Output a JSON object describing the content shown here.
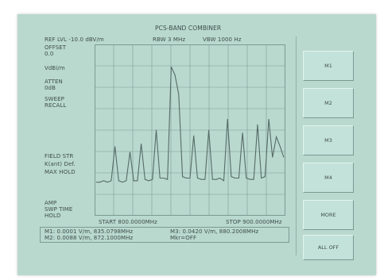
{
  "header": {
    "title": "PCS-BAND COMBINER",
    "ref_level": "REF LVL -10.0 dBV/m",
    "rbw": "RBW 3 MHz",
    "vbw": "VBW 1000 Hz"
  },
  "left_labels": {
    "offset_label": "OFFSET",
    "offset_value": "0.0",
    "units": "VdBi/m",
    "atten_label": "ATTEN",
    "atten_value": "0dB",
    "sweep_label": "SWEEP",
    "sweep_value": "RECALL",
    "field_str": "FIELD STR",
    "k_ant": "K(ant) Def.",
    "max_hold": "MAX HOLD",
    "amp": "AMP",
    "swp_time": "SWP TIME",
    "hold": "HOLD"
  },
  "axis": {
    "start": "START 800.0000MHz",
    "stop": "STOP 900.0000MHz"
  },
  "markers": {
    "m1": "M1: 0.0001 V/m, 835.0798MHz",
    "m2": "M2: 0.0088 V/m, 872.1000MHz",
    "m3": "M3: 0.0420 V/m, 880.2008MHz",
    "mkr_state": "Mkr=OFF"
  },
  "softkeys": [
    "M1",
    "M2",
    "M3",
    "M4",
    "MORE",
    "ALL OFF"
  ],
  "colors": {
    "background": "#b9d9cf",
    "trace": "#566b66",
    "grid": "#7e9a93"
  },
  "chart_data": {
    "type": "line",
    "series": [
      {
        "values": [
          0.02,
          0.02,
          0.03,
          0.02,
          0.03,
          0.28,
          0.03,
          0.02,
          0.03,
          0.24,
          0.03,
          0.03,
          0.3,
          0.04,
          0.03,
          0.04,
          0.4,
          0.05,
          0.05,
          0.04,
          0.86,
          0.8,
          0.66,
          0.06,
          0.05,
          0.05,
          0.36,
          0.05,
          0.04,
          0.04,
          0.4,
          0.04,
          0.04,
          0.05,
          0.03,
          0.48,
          0.06,
          0.05,
          0.05,
          0.38,
          0.05,
          0.04,
          0.04,
          0.44,
          0.05,
          0.06,
          0.48,
          0.2,
          0.35,
          0.28,
          0.2
        ]
      }
    ],
    "ylim": [
      0,
      1
    ],
    "grid": true
  }
}
